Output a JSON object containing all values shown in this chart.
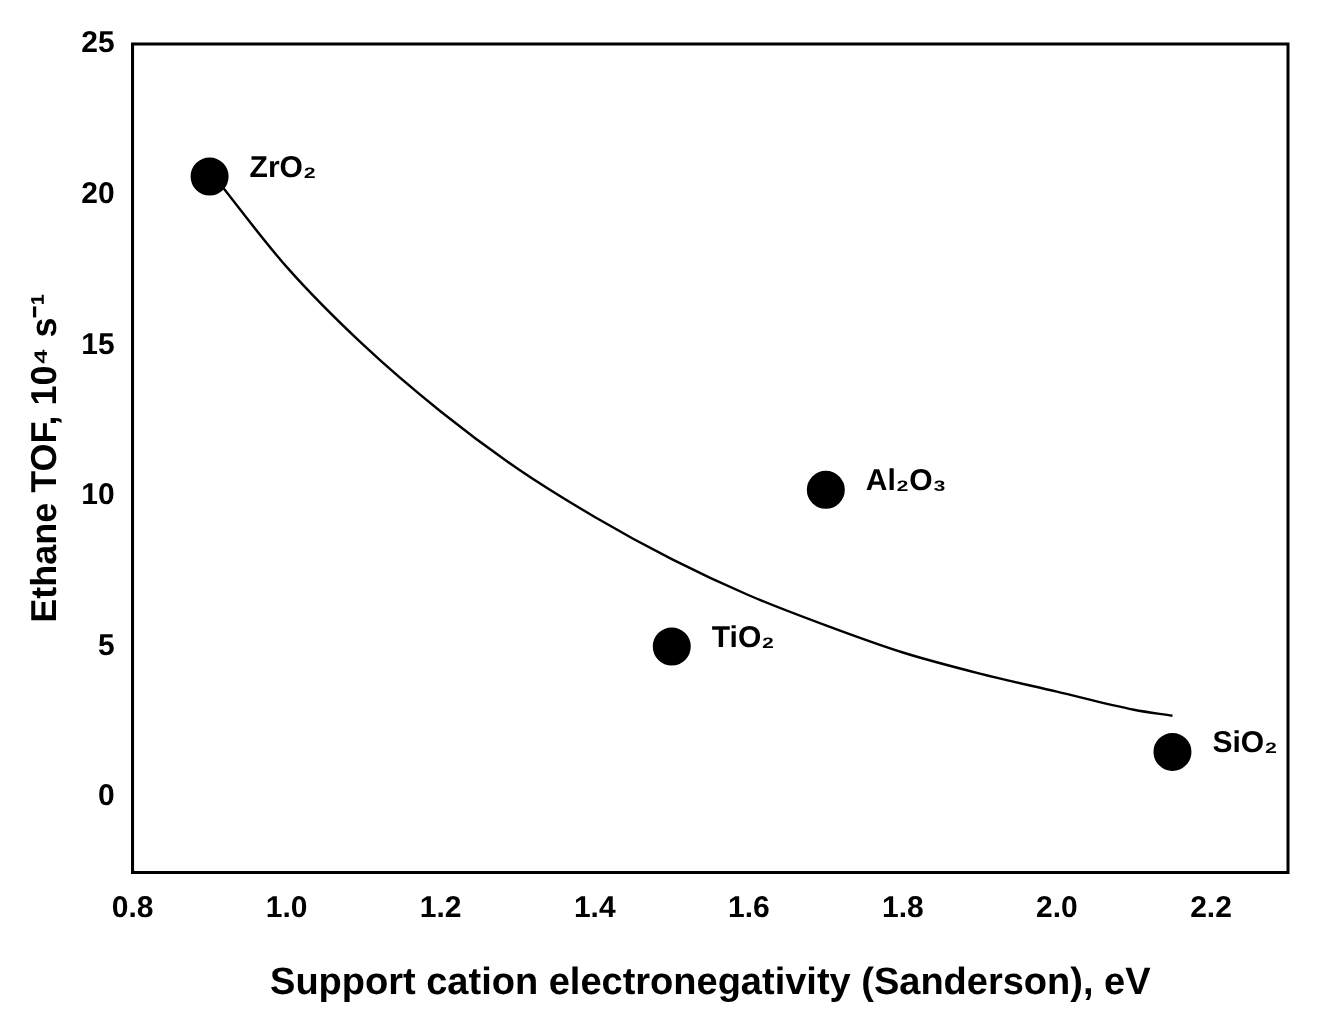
{
  "chart_data": {
    "type": "scatter",
    "xlabel": "Support cation electronegativity (Sanderson), eV",
    "ylabel": "Ethane TOF, 10⁴ s⁻¹",
    "series": [
      {
        "type": "scatter",
        "color": "#000000",
        "marker": "circle",
        "x": [
          0.9,
          1.5,
          1.7,
          2.15
        ],
        "values": [
          20.6,
          5.0,
          10.2,
          1.5
        ]
      },
      {
        "type": "line",
        "color": "#000000",
        "marker": "none",
        "x": [
          0.9,
          1.0,
          1.1,
          1.2,
          1.3,
          1.4,
          1.5,
          1.6,
          1.7,
          1.8,
          1.9,
          2.0,
          2.1,
          2.15
        ],
        "values": [
          20.8,
          17.6,
          15.0,
          12.8,
          10.9,
          9.3,
          7.9,
          6.7,
          5.7,
          4.8,
          4.1,
          3.5,
          2.9,
          2.7
        ]
      }
    ],
    "annotations": [
      {
        "text": "ZrO₂",
        "x": 0.9,
        "y": 20.6
      },
      {
        "text": "TiO₂",
        "x": 1.5,
        "y": 5.0
      },
      {
        "text": "Al₂O₃",
        "x": 1.7,
        "y": 10.2
      },
      {
        "text": "SiO₂",
        "x": 2.15,
        "y": 1.5
      }
    ],
    "xlim": [
      0.8,
      2.3
    ],
    "xticks": [
      0.8,
      {
        "value": 1,
        "label": "1.0"
      },
      1.2,
      1.4,
      1.6,
      1.8,
      {
        "value": 2,
        "label": "2.0"
      },
      2.2
    ],
    "ylim": [
      -2.5,
      25
    ],
    "yticks": [
      0,
      5,
      10,
      15,
      20,
      25
    ],
    "grid": false,
    "legend": false
  }
}
